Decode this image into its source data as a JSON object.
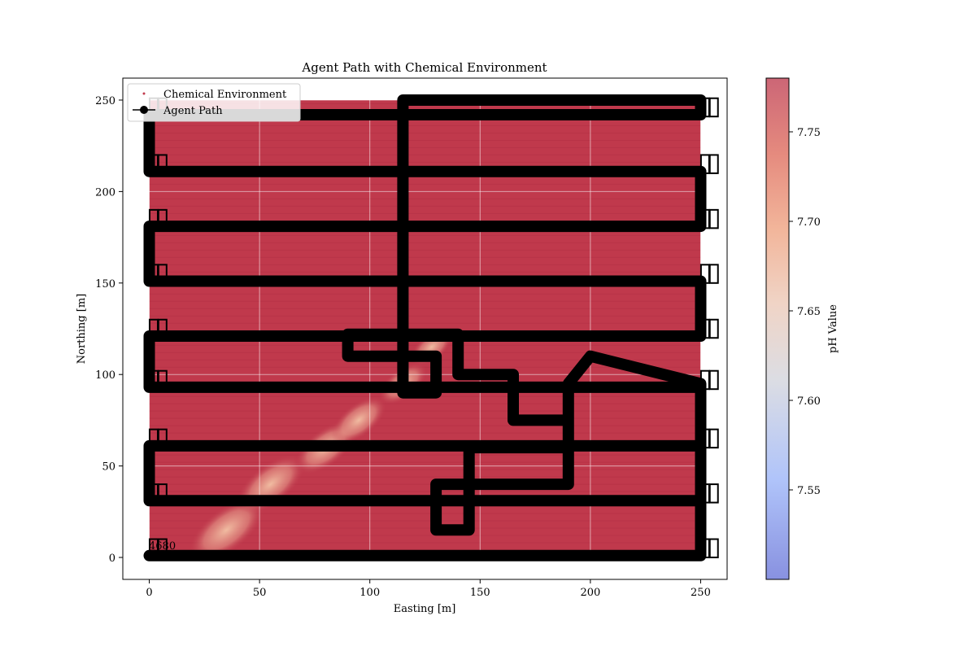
{
  "chart_data": {
    "type": "scatter",
    "title": "Agent Path with Chemical Environment",
    "xlabel": "Easting [m]",
    "ylabel": "Northing [m]",
    "xlim": [
      -12,
      262
    ],
    "ylim": [
      -12,
      262
    ],
    "xticks": [
      "0",
      "50",
      "100",
      "150",
      "200",
      "250"
    ],
    "xtick_values": [
      0,
      50,
      100,
      150,
      200,
      250
    ],
    "yticks": [
      "0",
      "50",
      "100",
      "150",
      "200",
      "250"
    ],
    "ytick_values": [
      0,
      50,
      100,
      150,
      200,
      250
    ],
    "grid": true,
    "legend": {
      "placement": "upper-left",
      "entries": [
        "Chemical Environment",
        "Agent Path"
      ]
    },
    "colorbar": {
      "label": "pH Value",
      "range": [
        7.5,
        7.78
      ],
      "ticks": [
        "7.55",
        "7.60",
        "7.65",
        "7.70",
        "7.75"
      ],
      "tick_values": [
        7.55,
        7.6,
        7.65,
        7.7,
        7.75
      ],
      "colormap": "coolwarm"
    },
    "environment": {
      "x_range": [
        0,
        250
      ],
      "y_range": [
        0,
        250
      ],
      "background_ph": 7.77,
      "plume": [
        {
          "x": 35,
          "y": 15,
          "ph": 7.72
        },
        {
          "x": 55,
          "y": 40,
          "ph": 7.73
        },
        {
          "x": 80,
          "y": 60,
          "ph": 7.74
        },
        {
          "x": 95,
          "y": 75,
          "ph": 7.73
        },
        {
          "x": 115,
          "y": 95,
          "ph": 7.71
        },
        {
          "x": 128,
          "y": 115,
          "ph": 7.68
        }
      ]
    },
    "series": [
      {
        "name": "Agent Path",
        "lawnmower_rows": [
          1,
          31,
          61,
          93,
          121,
          151,
          181,
          211,
          242
        ],
        "lawnmower_x": [
          0,
          250
        ],
        "points": [
          [
            0,
            1
          ],
          [
            250,
            1
          ],
          [
            250,
            31
          ],
          [
            0,
            31
          ],
          [
            0,
            61
          ],
          [
            250,
            61
          ],
          [
            250,
            93
          ],
          [
            0,
            93
          ],
          [
            0,
            121
          ],
          [
            250,
            121
          ],
          [
            250,
            151
          ],
          [
            0,
            151
          ],
          [
            0,
            181
          ],
          [
            250,
            181
          ],
          [
            250,
            211
          ],
          [
            0,
            211
          ],
          [
            0,
            242
          ],
          [
            250,
            242
          ],
          [
            250,
            250
          ],
          [
            115,
            250
          ],
          [
            115,
            90
          ],
          [
            130,
            90
          ],
          [
            130,
            110
          ],
          [
            90,
            110
          ],
          [
            90,
            122
          ],
          [
            140,
            122
          ],
          [
            140,
            100
          ],
          [
            165,
            100
          ],
          [
            165,
            75
          ],
          [
            190,
            75
          ],
          [
            190,
            40
          ],
          [
            130,
            40
          ],
          [
            130,
            15
          ],
          [
            145,
            15
          ],
          [
            145,
            60
          ],
          [
            190,
            60
          ],
          [
            190,
            95
          ],
          [
            200,
            110
          ],
          [
            250,
            95
          ],
          [
            250,
            1
          ]
        ]
      }
    ],
    "annotations": [
      "4680"
    ]
  }
}
